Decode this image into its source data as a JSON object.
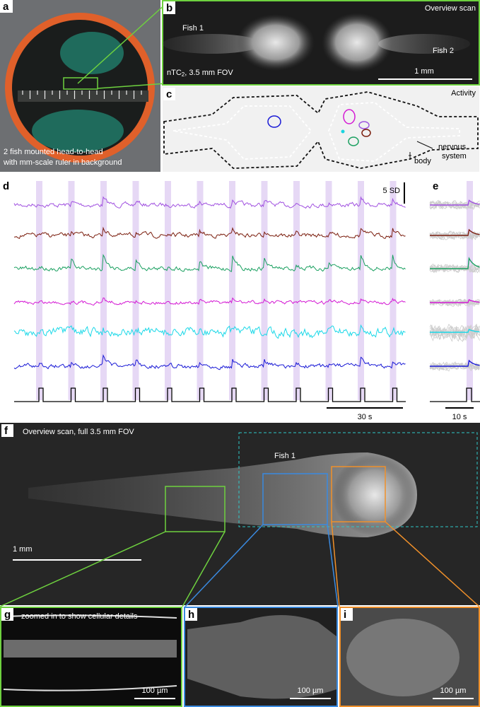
{
  "panels": {
    "a": {
      "label": "a",
      "caption": [
        "2 fish mounted head-to-head",
        "with mm-scale ruler in background"
      ]
    },
    "b": {
      "label": "b",
      "title": "Overview scan",
      "fish_left": "Fish 1",
      "fish_right": "Fish 2",
      "fov": {
        "name": "nTC",
        "subscript": "2",
        "rest": ", 3.5 mm FOV"
      },
      "scale": "1 mm"
    },
    "c": {
      "label": "c",
      "title": "Activity",
      "nervous_system": [
        "nervous",
        "system"
      ],
      "body": "body"
    },
    "d": {
      "label": "d",
      "amplitude_scale": "5 SD",
      "time_scale": "30 s"
    },
    "e": {
      "label": "e",
      "time_scale": "10 s"
    },
    "f": {
      "label": "f",
      "title": "Overview scan, full 3.5 mm FOV",
      "fish": "Fish 1",
      "scale": "1 mm"
    },
    "g": {
      "label": "g",
      "title": "zoomed in to show cellular details",
      "scale": "100 µm"
    },
    "h": {
      "label": "h",
      "scale": "100 µm"
    },
    "i": {
      "label": "i",
      "scale": "100 µm"
    }
  }
}
